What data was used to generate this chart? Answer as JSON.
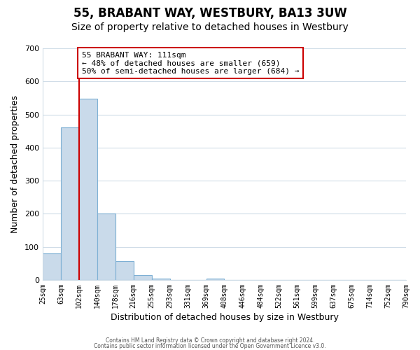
{
  "title": "55, BRABANT WAY, WESTBURY, BA13 3UW",
  "subtitle": "Size of property relative to detached houses in Westbury",
  "xlabel": "Distribution of detached houses by size in Westbury",
  "ylabel": "Number of detached properties",
  "bin_labels": [
    "25sqm",
    "63sqm",
    "102sqm",
    "140sqm",
    "178sqm",
    "216sqm",
    "255sqm",
    "293sqm",
    "331sqm",
    "369sqm",
    "408sqm",
    "446sqm",
    "484sqm",
    "522sqm",
    "561sqm",
    "599sqm",
    "637sqm",
    "675sqm",
    "714sqm",
    "752sqm",
    "790sqm"
  ],
  "bar_heights": [
    80,
    460,
    548,
    200,
    57,
    15,
    5,
    0,
    0,
    5,
    0,
    0,
    0,
    0,
    0,
    0,
    0,
    0,
    0,
    0
  ],
  "bar_color": "#c9daea",
  "bar_edge_color": "#7eb0d4",
  "vline_x_index": 2,
  "vline_color": "#cc0000",
  "annotation_text": "55 BRABANT WAY: 111sqm\n← 48% of detached houses are smaller (659)\n50% of semi-detached houses are larger (684) →",
  "annotation_box_color": "#ffffff",
  "annotation_box_edge": "#cc0000",
  "ylim": [
    0,
    700
  ],
  "yticks": [
    0,
    100,
    200,
    300,
    400,
    500,
    600,
    700
  ],
  "footer1": "Contains HM Land Registry data © Crown copyright and database right 2024.",
  "footer2": "Contains public sector information licensed under the Open Government Licence v3.0.",
  "bg_color": "#ffffff",
  "grid_color": "#d0dde8",
  "title_fontsize": 12,
  "subtitle_fontsize": 10
}
